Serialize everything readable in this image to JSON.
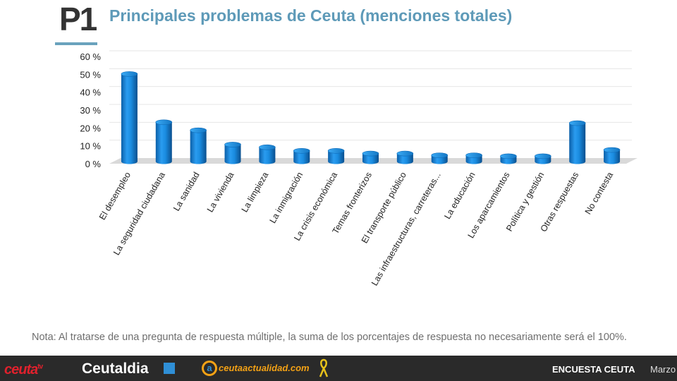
{
  "header": {
    "badge": "P1",
    "title": "Principales problemas de Ceuta (menciones totales)"
  },
  "chart_data": {
    "type": "bar",
    "title": "Principales problemas de Ceuta (menciones totales)",
    "categories": [
      "El desempleo",
      "La seguridad ciudadana",
      "La sanidad",
      "La vivienda",
      "La limpieza",
      "La inmigración",
      "La crisis económica",
      "Temas fronterizos",
      "El transporte público",
      "Las infraestructuras, carreteras...",
      "La educación",
      "Los aparcamientos",
      "Política y gestión",
      "Otras respuestas",
      "No contesta"
    ],
    "values": [
      49,
      22,
      17.5,
      9.5,
      8,
      6,
      6,
      4.5,
      4.5,
      3.5,
      3.5,
      3,
      3,
      21.5,
      6.5
    ],
    "yticks": [
      "0 %",
      "10 %",
      "20 %",
      "30 %",
      "40 %",
      "50 %",
      "60 %"
    ],
    "ylim": [
      0,
      60
    ],
    "grid": true,
    "style": "3d-cylinder",
    "bar_color": "#1a8ce0",
    "floor_color": "#d9d9d9"
  },
  "note": "Nota: Al tratarse de una pregunta de respuesta múltiple, la suma de los porcentajes de respuesta no necesariamente será el 100%.",
  "footer": {
    "logo_ceutatv": "ceuta",
    "logo_ceutatv_sup": "tv",
    "logo_ceutaldia": "Ceutaldia",
    "logo_ceutaactualidad_mark": "a",
    "logo_ceutaactualidad": "ceutaactualidad.com",
    "survey_label": "ENCUESTA CEUTA",
    "survey_month": "Marzo"
  },
  "colors": {
    "title": "#5e9ab8",
    "accent_bar": "#6aa2bd",
    "footer_bg": "#2a2a2a",
    "ceutatv_red": "#e0212d",
    "ceutaactualidad_orange": "#f4a215",
    "ceutaldia_blue": "#2f8fd6"
  }
}
